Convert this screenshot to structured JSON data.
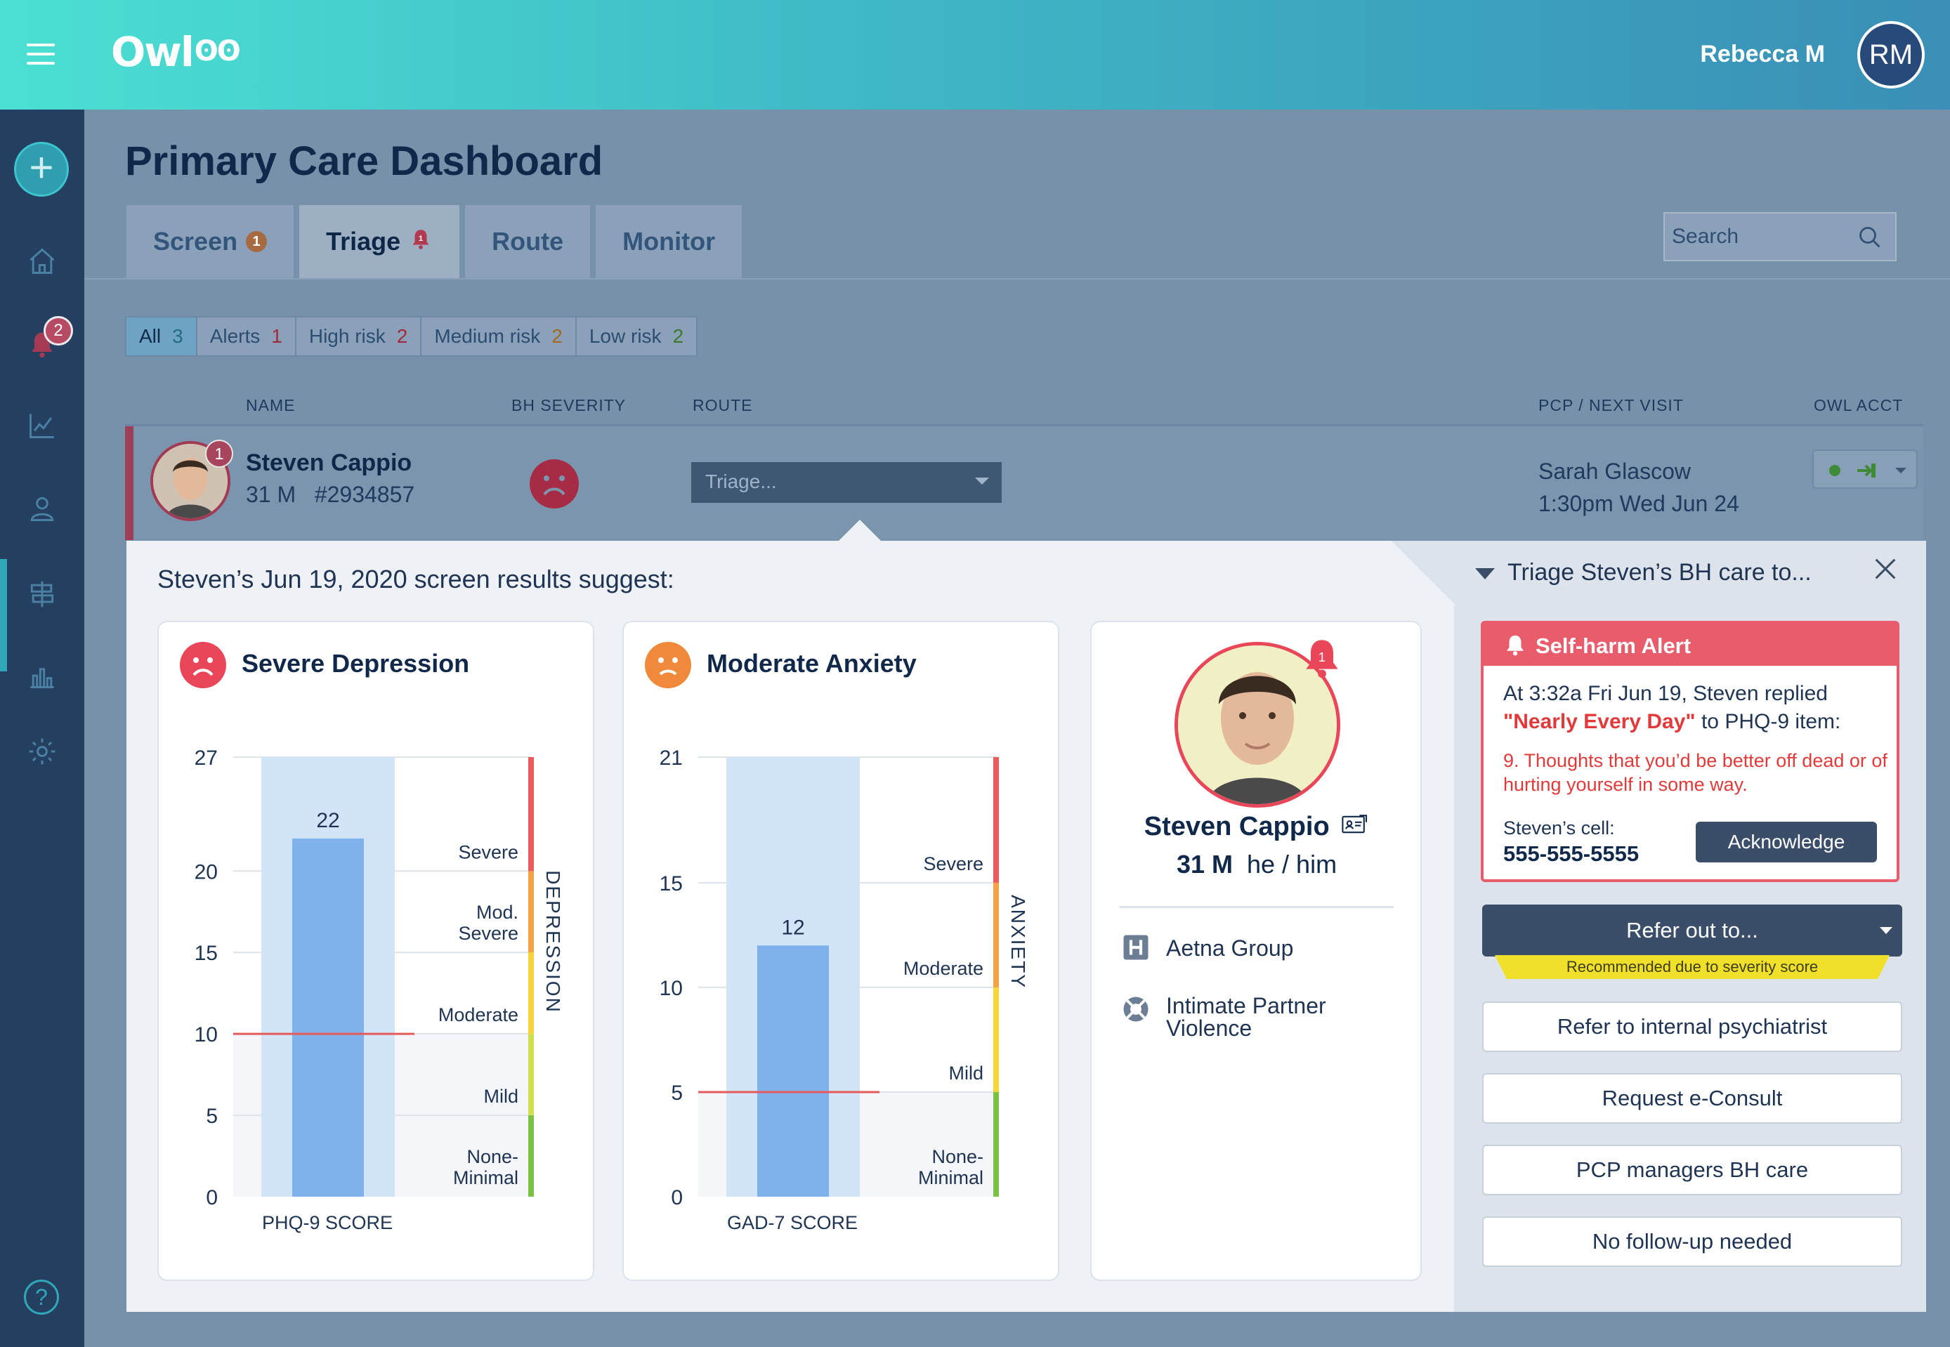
{
  "header": {
    "logo": "Owl",
    "user_name": "Rebecca M",
    "user_initials": "RM"
  },
  "sidebar": {
    "alerts_badge": "2",
    "help_label": "?"
  },
  "page_title": "Primary Care Dashboard",
  "tabs": [
    {
      "label": "Screen",
      "badge": "1"
    },
    {
      "label": "Triage",
      "badge": "1"
    },
    {
      "label": "Route"
    },
    {
      "label": "Monitor"
    }
  ],
  "search": {
    "placeholder": "Search"
  },
  "filters": [
    {
      "label": "All",
      "count": "3"
    },
    {
      "label": "Alerts",
      "count": "1"
    },
    {
      "label": "High risk",
      "count": "2"
    },
    {
      "label": "Medium risk",
      "count": "2"
    },
    {
      "label": "Low risk",
      "count": "2"
    }
  ],
  "columns": {
    "name": "NAME",
    "severity": "BH SEVERITY",
    "route": "ROUTE",
    "pcp": "PCP / NEXT VISIT",
    "acct": "OWL ACCT"
  },
  "patient_row": {
    "badge": "1",
    "name": "Steven Cappio",
    "sub": "31 M   #2934857",
    "route_value": "Triage...",
    "pcp_name": "Sarah Glascow",
    "next_visit": "1:30pm Wed Jun 24"
  },
  "panel": {
    "title": "Steven’s Jun 19, 2020 screen results suggest:"
  },
  "depression": {
    "title": "Severe Depression",
    "score_label": "PHQ-9 SCORE",
    "side_label": "DEPRESSION",
    "bands": [
      "Severe",
      "Mod.\nSevere",
      "Moderate",
      "Mild",
      "None-\nMinimal"
    ],
    "colors": {
      "bar": "#7fb2ea",
      "bar_bg": "#d2e4f7",
      "threshold": "#e55b5b"
    }
  },
  "anxiety": {
    "title": "Moderate Anxiety",
    "score_label": "GAD-7 SCORE",
    "side_label": "ANXIETY",
    "bands": [
      "Severe",
      "Moderate",
      "Mild",
      "None-\nMinimal"
    ],
    "colors": {
      "bar": "#7fb2ea",
      "bar_bg": "#d2e4f7",
      "threshold": "#e55b5b"
    }
  },
  "chart_data": [
    {
      "type": "bar",
      "categories": [
        "PHQ-9 SCORE"
      ],
      "values": [
        22
      ],
      "xlabel": "PHQ-9 SCORE",
      "ylabel": "",
      "ylim": [
        0,
        27
      ],
      "yticks": [
        0,
        5,
        10,
        15,
        20,
        27
      ],
      "threshold": 10,
      "bands": [
        {
          "label": "None-Minimal",
          "from": 0,
          "to": 5,
          "color": "#7bc144"
        },
        {
          "label": "Mild",
          "from": 5,
          "to": 10,
          "color": "#cfe04c"
        },
        {
          "label": "Moderate",
          "from": 10,
          "to": 15,
          "color": "#f5d53a"
        },
        {
          "label": "Mod. Severe",
          "from": 15,
          "to": 20,
          "color": "#f3a246"
        },
        {
          "label": "Severe",
          "from": 20,
          "to": 27,
          "color": "#ec5b5b"
        }
      ]
    },
    {
      "type": "bar",
      "categories": [
        "GAD-7 SCORE"
      ],
      "values": [
        12
      ],
      "xlabel": "GAD-7 SCORE",
      "ylabel": "",
      "ylim": [
        0,
        21
      ],
      "yticks": [
        0,
        5,
        10,
        15,
        21
      ],
      "threshold": 5,
      "bands": [
        {
          "label": "None-Minimal",
          "from": 0,
          "to": 5,
          "color": "#7bc144"
        },
        {
          "label": "Mild",
          "from": 5,
          "to": 10,
          "color": "#f5d53a"
        },
        {
          "label": "Moderate",
          "from": 10,
          "to": 15,
          "color": "#f3a246"
        },
        {
          "label": "Severe",
          "from": 15,
          "to": 21,
          "color": "#ec5b5b"
        }
      ]
    }
  ],
  "profile": {
    "alert_badge": "1",
    "name": "Steven Cappio",
    "age_sex": "31 M",
    "pronouns": "he / him",
    "insurance": "Aetna Group",
    "flag": "Intimate Partner Violence"
  },
  "triage": {
    "heading": "Triage Steven’s BH care to...",
    "alert": {
      "title": "Self-harm Alert",
      "text_pre": "At 3:32a Fri Jun 19, Steven replied",
      "quote": "\"Nearly Every Day\"",
      "text_post": " to PHQ-9 item:",
      "item": "9. Thoughts that you’d be better off dead or of hurting yourself in some way.",
      "cell_label": "Steven’s cell:",
      "phone": "555-555-5555",
      "ack_label": "Acknowledge"
    },
    "refer_label": "Refer out to...",
    "recommend_note": "Recommended due to severity score",
    "options": [
      "Refer to internal psychiatrist",
      "Request e-Consult",
      "PCP managers BH care",
      "No follow-up needed"
    ]
  }
}
